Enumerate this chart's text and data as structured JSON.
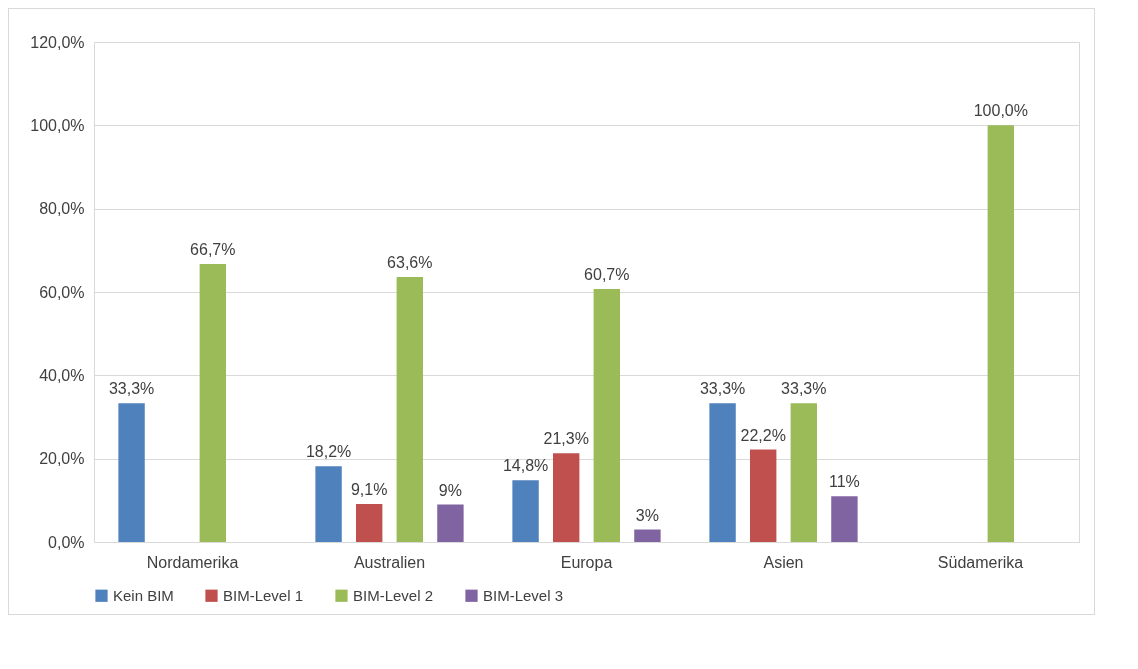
{
  "chart_data": {
    "type": "bar",
    "categories": [
      "Nordamerika",
      "Australien",
      "Europa",
      "Asien",
      "Südamerika"
    ],
    "series": [
      {
        "name": "Kein BIM",
        "color": "#4f81bd",
        "values": [
          33.3,
          18.2,
          14.8,
          33.3,
          null
        ],
        "value_labels": [
          "33,3%",
          "18,2%",
          "14,8%",
          "33,3%",
          null
        ]
      },
      {
        "name": "BIM-Level 1",
        "color": "#c0504d",
        "values": [
          null,
          9.1,
          21.3,
          22.2,
          null
        ],
        "value_labels": [
          null,
          "9,1%",
          "21,3%",
          "22,2%",
          null
        ]
      },
      {
        "name": "BIM-Level 2",
        "color": "#9bbb59",
        "values": [
          66.7,
          63.6,
          60.7,
          33.3,
          100.0
        ],
        "value_labels": [
          "66,7%",
          "63,6%",
          "60,7%",
          "33,3%",
          "100,0%"
        ]
      },
      {
        "name": "BIM-Level 3",
        "color": "#8064a2",
        "values": [
          null,
          9,
          3,
          11,
          null
        ],
        "value_labels": [
          null,
          "9%",
          "3%",
          "11%",
          null
        ]
      }
    ],
    "ylim": [
      0,
      120
    ],
    "yticks": [
      {
        "value": 0,
        "label": "0,0%"
      },
      {
        "value": 20,
        "label": "20,0%"
      },
      {
        "value": 40,
        "label": "40,0%"
      },
      {
        "value": 60,
        "label": "60,0%"
      },
      {
        "value": 80,
        "label": "80,0%"
      },
      {
        "value": 100,
        "label": "100,0%"
      },
      {
        "value": 120,
        "label": "120,0%"
      }
    ],
    "grid": "y",
    "legend": "bottom"
  }
}
